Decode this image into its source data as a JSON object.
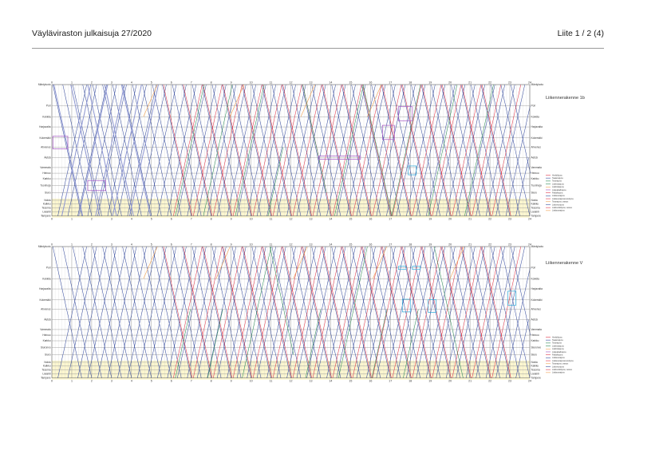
{
  "header": {
    "title": "Väyläviraston julkaisuja 27/2020",
    "page_ref": "Liite 1 / 2 (4)"
  },
  "colors": {
    "blue": "#3a4fa0",
    "lightblue": "#8d96d2",
    "red": "#e0374a",
    "green": "#2e8b57",
    "orange": "#f0a050",
    "purple": "#a050c0",
    "cyan": "#2aa8d8",
    "yellow_band": "#fbf6cf"
  },
  "panels": [
    {
      "title": "Liikennerakenne 1b",
      "stations": [
        "Mäntyluoto",
        "Pori",
        "Kokkila",
        "Harjavalta",
        "Kokemäki",
        "Ahvenus",
        "Äetsä",
        "Vammala",
        "Heinoo",
        "Karkku",
        "Tuorinoja",
        "Siuro",
        "Nokia",
        "Kalkku",
        "Tesoma",
        "Lielahti",
        "Tampere"
      ],
      "hour_labels": [
        "0",
        "1",
        "2",
        "3",
        "4",
        "5",
        "6",
        "7",
        "8",
        "9",
        "10",
        "11",
        "12",
        "13",
        "14",
        "15",
        "16",
        "17",
        "18",
        "19",
        "20",
        "21",
        "22",
        "23",
        "24"
      ],
      "legend": [
        "Henkilöjuna",
        "Taajamajuna",
        "Tavarajuna",
        "Lisähidasjuna",
        "Lisähidasjuna",
        "Lisäpaikallisjuna",
        "Paikallisjuna",
        "Lisätavarajuna",
        "Lisätavarajuna/veturijuna",
        "Tavarajuna, varaus",
        "Lisäveturijuna",
        "Lisähenkilöjuna, varaus",
        "Lisätavarajuna"
      ]
    },
    {
      "title": "Liikennerakenne V",
      "stations": [
        "Mäntyluoto",
        "Pori",
        "Kokkila",
        "Harjavalta",
        "Kokemäki",
        "Ahvenus",
        "Äetsä",
        "Vammala",
        "Heinoo",
        "Karkku",
        "Siuronvo",
        "Siuro",
        "Nokia",
        "Kalkku",
        "Tesoma",
        "Lielahti",
        "Tampere"
      ],
      "hour_labels": [
        "0",
        "1",
        "2",
        "3",
        "4",
        "5",
        "6",
        "7",
        "8",
        "9",
        "10",
        "11",
        "12",
        "13",
        "14",
        "15",
        "16",
        "17",
        "18",
        "19",
        "20",
        "21",
        "22",
        "23",
        "24"
      ],
      "legend": [
        "Henkilöjuna",
        "Taajamajuna",
        "Tavarajuna",
        "Lisähidasjuna",
        "Lisähidasjuna",
        "Lisäpaikallisjuna",
        "Paikallisjuna",
        "Lisätavarajuna",
        "Lisätavarajuna/veturijuna",
        "Tavarajuna, varaus",
        "Lisäveturijuna",
        "Lisähenkilöjuna, varaus",
        "Lisätavarajuna"
      ]
    }
  ]
}
